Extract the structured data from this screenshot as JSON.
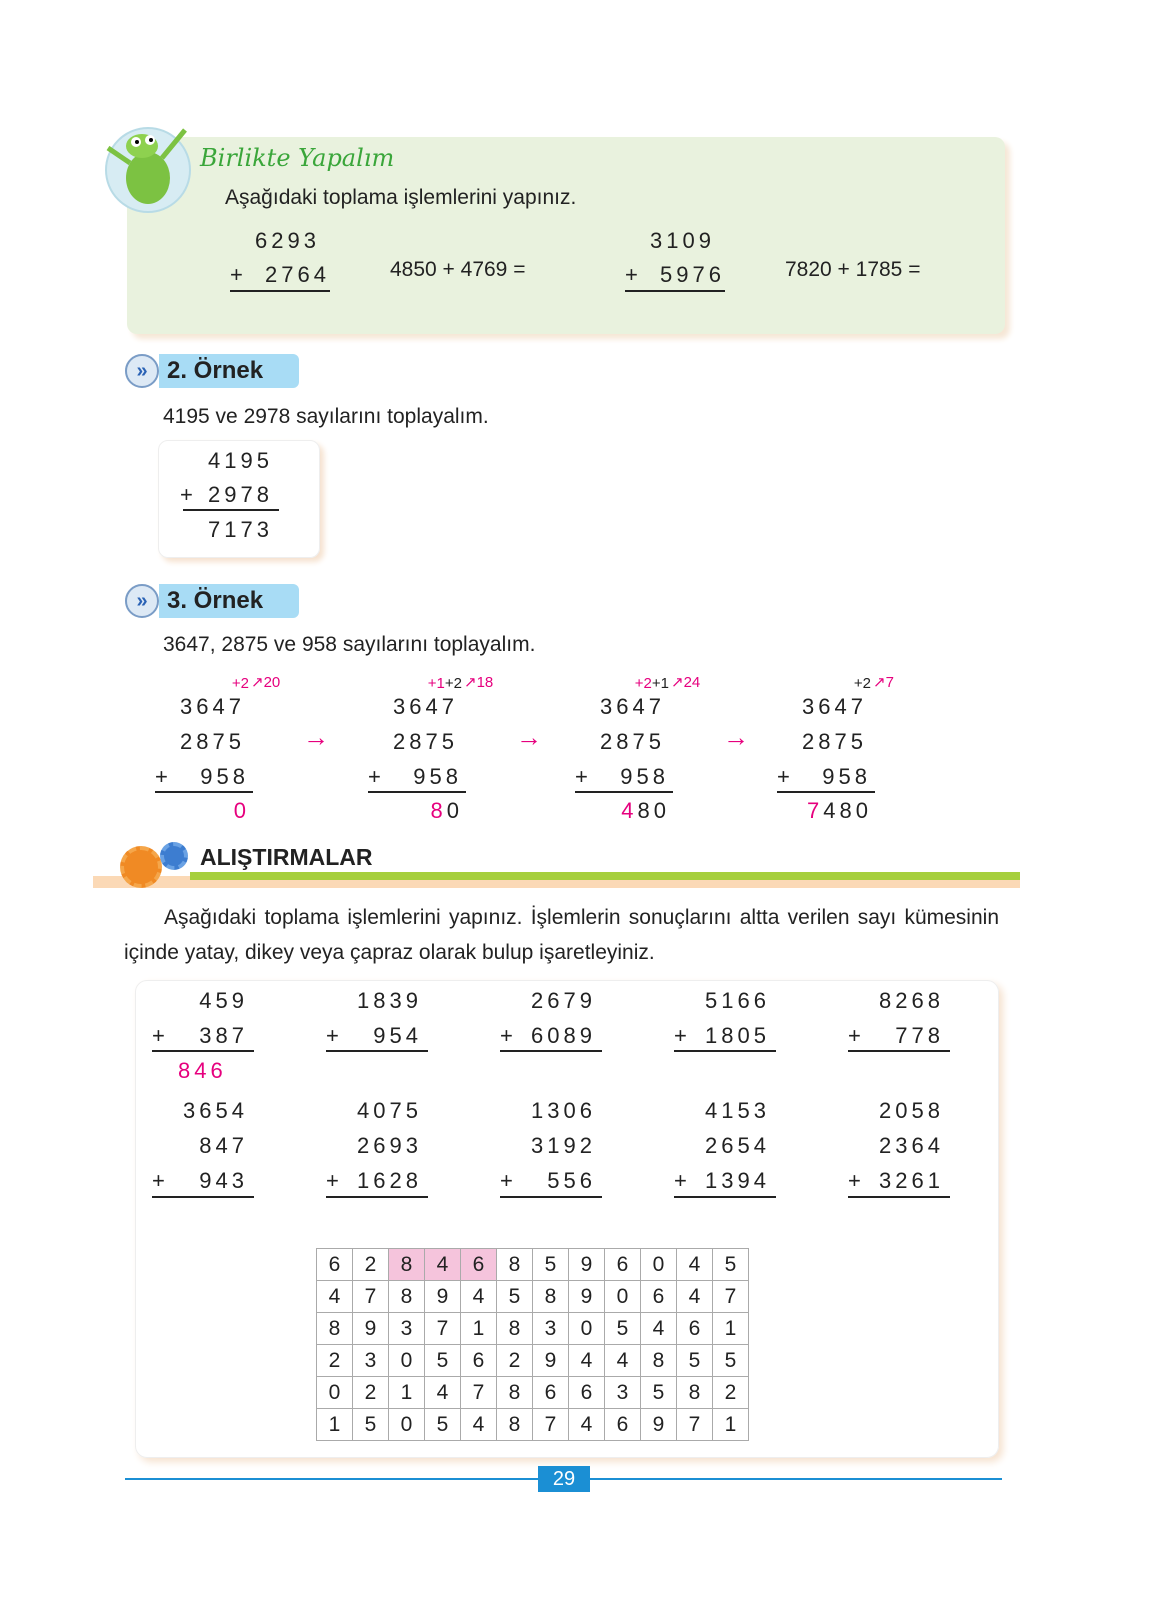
{
  "together": {
    "title": "Birlikte Yapalım",
    "instruction": "Aşağıdaki toplama işlemlerini yapınız.",
    "p1": {
      "a": "6293",
      "b": "2764"
    },
    "e2": "4850 + 4769 =",
    "p3": {
      "a": "3109",
      "b": "5976"
    },
    "e4": "7820 + 1785 ="
  },
  "example2": {
    "label": "2. Örnek",
    "text": "4195 ve 2978 sayılarını toplayalım.",
    "a": "4195",
    "b": "2978",
    "result": "7173"
  },
  "example3": {
    "label": "3. Örnek",
    "text": "3647, 2875 ve 958 sayılarını toplayalım.",
    "steps": [
      {
        "carry_red": "+2",
        "carry_black": "",
        "sum": "20",
        "result_red": "0",
        "result_black": ""
      },
      {
        "carry_red": "+1",
        "carry_black": "+2",
        "sum": "18",
        "result_red": "8",
        "result_black": "0"
      },
      {
        "carry_red": "+2",
        "carry_black": "+1",
        "sum": "24",
        "result_red": "4",
        "result_black": "80"
      },
      {
        "carry_red": "",
        "carry_black": "+2",
        "sum": "7",
        "result_red": "7",
        "result_black": "480"
      }
    ],
    "a": "3647",
    "b": "2875",
    "c": "958",
    "plus": "+",
    "arrow": "→"
  },
  "exercises": {
    "title": "ALIŞTIRMALAR",
    "instruction": "Aşağıdaki toplama işlemlerini yapınız. İşlemlerin sonuçlarını altta verilen sayı kümesinin içinde yatay, dikey veya çapraz olarak bulup işaretleyiniz.",
    "row1": [
      {
        "a": "459",
        "b": "387",
        "r": "846"
      },
      {
        "a": "1839",
        "b": "954",
        "r": ""
      },
      {
        "a": "2679",
        "b": "6089",
        "r": ""
      },
      {
        "a": "5166",
        "b": "1805",
        "r": ""
      },
      {
        "a": "8268",
        "b": "778",
        "r": ""
      }
    ],
    "row2": [
      {
        "a": "3654",
        "b": "847",
        "c": "943"
      },
      {
        "a": "4075",
        "b": "2693",
        "c": "1628"
      },
      {
        "a": "1306",
        "b": "3192",
        "c": "556"
      },
      {
        "a": "4153",
        "b": "2654",
        "c": "1394"
      },
      {
        "a": "2058",
        "b": "2364",
        "c": "3261"
      }
    ],
    "grid": [
      [
        6,
        2,
        8,
        4,
        6,
        8,
        5,
        9,
        6,
        0,
        4,
        5
      ],
      [
        4,
        7,
        8,
        9,
        4,
        5,
        8,
        9,
        0,
        6,
        4,
        7
      ],
      [
        8,
        9,
        3,
        7,
        1,
        8,
        3,
        0,
        5,
        4,
        6,
        1
      ],
      [
        2,
        3,
        0,
        5,
        6,
        2,
        9,
        4,
        4,
        8,
        5,
        5
      ],
      [
        0,
        2,
        1,
        4,
        7,
        8,
        6,
        6,
        3,
        5,
        8,
        2
      ],
      [
        1,
        5,
        0,
        5,
        4,
        8,
        7,
        4,
        6,
        9,
        7,
        1
      ]
    ],
    "highlighted": [
      [
        0,
        2
      ],
      [
        0,
        3
      ],
      [
        0,
        4
      ]
    ],
    "highlight_color": "#f5c4dc"
  },
  "page_number": "29",
  "colors": {
    "accent_pink": "#e6007e",
    "green_bar": "#a6cf3d",
    "blue_line": "#1b8fd4"
  }
}
